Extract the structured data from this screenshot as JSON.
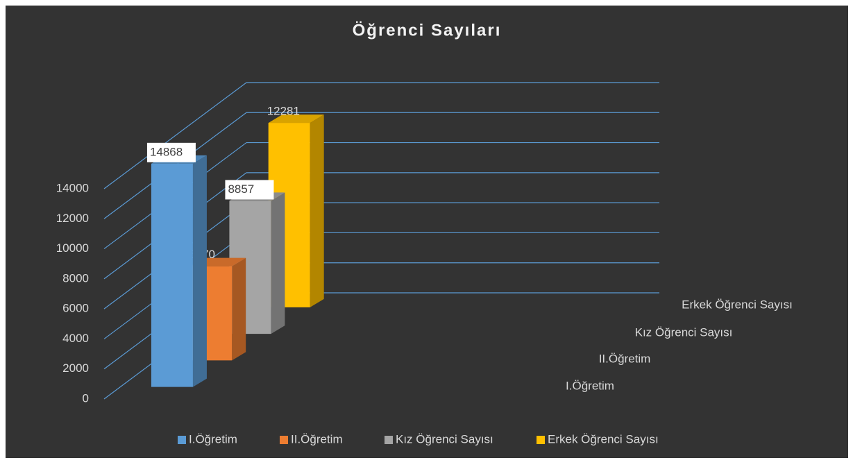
{
  "chart_data": {
    "type": "bar3d",
    "title": "Öğrenci Sayıları",
    "series": [
      {
        "name": "I.Öğretim",
        "color": "#5b9bd5",
        "values": [
          14868
        ]
      },
      {
        "name": "II.Öğretim",
        "color": "#ed7d31",
        "values": [
          6270
        ]
      },
      {
        "name": "Kız Öğrenci Sayısı",
        "color": "#a5a5a5",
        "values": [
          8857
        ]
      },
      {
        "name": "Erkek Öğrenci Sayısı",
        "color": "#ffc000",
        "values": [
          12281
        ]
      }
    ],
    "ylim": [
      0,
      14000
    ],
    "yticks": [
      0,
      2000,
      4000,
      6000,
      8000,
      10000,
      12000,
      14000
    ],
    "grid": true,
    "legend": "bottom"
  }
}
